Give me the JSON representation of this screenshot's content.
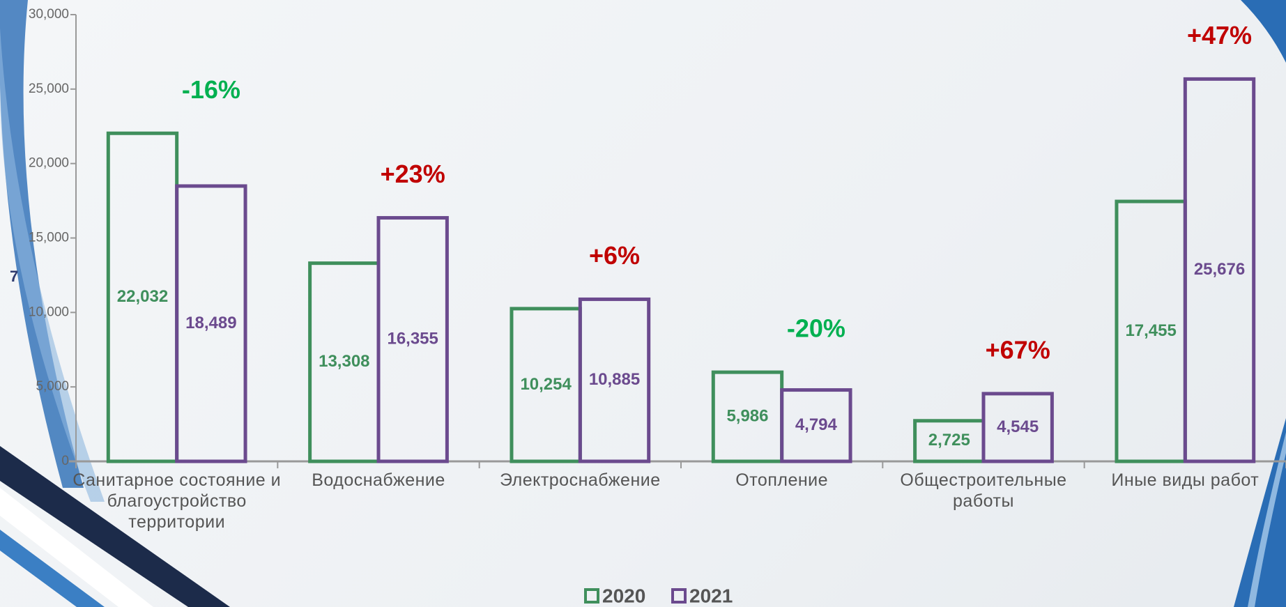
{
  "slide_number": "7",
  "chart_data": {
    "type": "bar",
    "categories": [
      "Санитарное состояние и благоустройство территории",
      "Водоснабжение",
      "Электроснабжение",
      "Отопление",
      "Общестроительные работы",
      "Иные виды работ"
    ],
    "series": [
      {
        "name": "2020",
        "color": "#3f8f5c",
        "values": [
          22032,
          13308,
          10254,
          5986,
          2725,
          17455
        ],
        "value_labels": [
          "22,032",
          "13,308",
          "10,254",
          "5,986",
          "2,725",
          "17,455"
        ]
      },
      {
        "name": "2021",
        "color": "#6b4a8e",
        "values": [
          18489,
          16355,
          10885,
          4794,
          4545,
          25676
        ],
        "value_labels": [
          "18,489",
          "16,355",
          "10,885",
          "4,794",
          "4,545",
          "25,676"
        ]
      }
    ],
    "annotations": [
      {
        "text": "-16%",
        "color": "#00b050"
      },
      {
        "text": "+23%",
        "color": "#c00000"
      },
      {
        "text": "+6%",
        "color": "#c00000"
      },
      {
        "text": "-20%",
        "color": "#00b050"
      },
      {
        "text": "+67%",
        "color": "#c00000"
      },
      {
        "text": "+47%",
        "color": "#c00000"
      }
    ],
    "ylim": [
      0,
      30000
    ],
    "yticks": [
      0,
      {
        "value": 5000,
        "label": "5,000"
      },
      {
        "value": 10000,
        "label": "10,000"
      },
      {
        "value": 15000,
        "label": "15,000"
      },
      {
        "value": 20000,
        "label": "20,000"
      },
      {
        "value": 25000,
        "label": "25,000"
      },
      {
        "value": 30000,
        "label": "30,000"
      }
    ],
    "grid": false,
    "legend": "bottom"
  }
}
